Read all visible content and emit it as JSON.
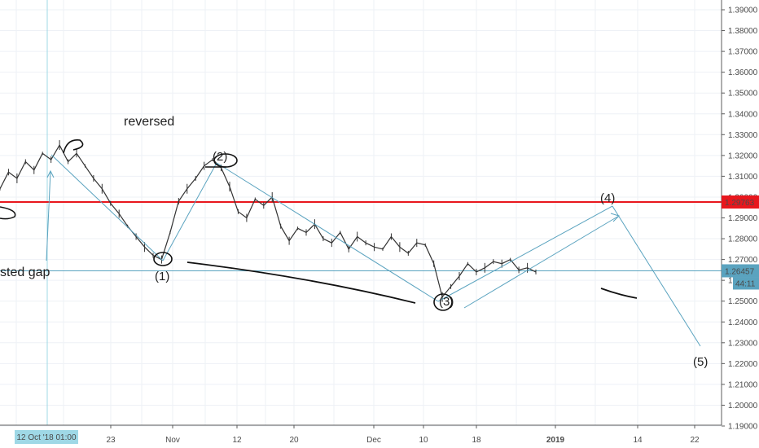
{
  "chart_data": {
    "type": "line",
    "annotation_text": "reversed",
    "gap_label": "sted gap",
    "waves": [
      "(1)",
      "(2)",
      "(3)",
      "(4)",
      "(5)"
    ],
    "x_ticks": [
      "23",
      "Nov",
      "12",
      "20",
      "Dec",
      "10",
      "18",
      "2019",
      "14",
      "22"
    ],
    "crosshair_date": "12 Oct '18  01:00",
    "y_ticks": [
      "1.39000",
      "1.38000",
      "1.37000",
      "1.36000",
      "1.35000",
      "1.34000",
      "1.33000",
      "1.32000",
      "1.31000",
      "1.30000",
      "1.29000",
      "1.28000",
      "1.27000",
      "1.26000",
      "1.25000",
      "1.24000",
      "1.23000",
      "1.22000",
      "1.21000",
      "1.20000",
      "1.19000"
    ],
    "ylim": [
      1.19,
      1.39
    ],
    "resistance_level": {
      "label": "1.29763",
      "value": 1.29763,
      "color": "#e8171d"
    },
    "current_price": {
      "label": "1.26457",
      "value": 1.26457,
      "countdown": "44:11",
      "color": "#5aa3bf"
    },
    "series": [
      {
        "values": [
          1.304,
          1.312,
          1.309,
          1.317,
          1.313,
          1.321,
          1.318,
          1.325,
          1.317,
          1.321,
          1.315,
          1.309,
          1.304,
          1.297,
          1.292,
          1.286,
          1.281,
          1.276,
          1.272,
          1.27,
          1.283,
          1.298,
          1.304,
          1.309,
          1.315,
          1.318,
          1.314,
          1.305,
          1.293,
          1.29,
          1.299,
          1.296,
          1.3,
          1.286,
          1.279,
          1.285,
          1.283,
          1.287,
          1.28,
          1.278,
          1.283,
          1.275,
          1.281,
          1.278,
          1.276,
          1.275,
          1.281,
          1.276,
          1.273,
          1.278,
          1.277,
          1.268,
          1.252,
          1.257,
          1.262,
          1.268,
          1.264,
          1.266,
          1.269,
          1.268,
          1.27,
          1.265,
          1.266,
          1.264
        ]
      }
    ],
    "colors": {
      "price": "#333333",
      "arrows": "#5aa3bf",
      "grid": "#eef1f6",
      "axis": "#5c5c5c"
    }
  }
}
